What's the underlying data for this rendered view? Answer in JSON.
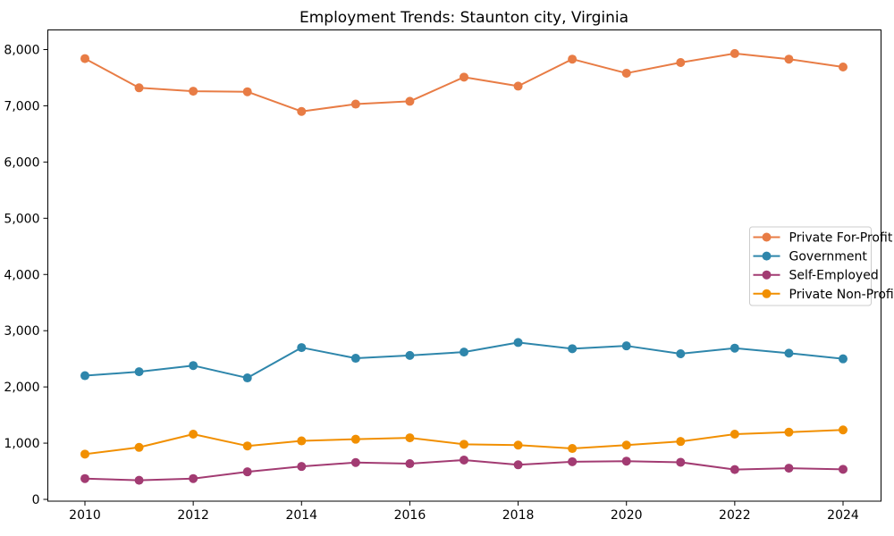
{
  "chart_data": {
    "type": "line",
    "title": "Employment Trends: Staunton city, Virginia",
    "x": [
      2010,
      2011,
      2012,
      2013,
      2014,
      2015,
      2016,
      2017,
      2018,
      2019,
      2020,
      2021,
      2022,
      2023,
      2024
    ],
    "x_ticks": [
      2010,
      2012,
      2014,
      2016,
      2018,
      2020,
      2022,
      2024
    ],
    "x_tick_labels": [
      "2010",
      "2012",
      "2014",
      "2016",
      "2018",
      "2020",
      "2022",
      "2024"
    ],
    "y_ticks": [
      0,
      1000,
      2000,
      3000,
      4000,
      5000,
      6000,
      7000,
      8000
    ],
    "y_tick_labels": [
      "0",
      "1,000",
      "2,000",
      "3,000",
      "4,000",
      "5,000",
      "6,000",
      "7,000",
      "8,000"
    ],
    "ylim": [
      0,
      8350
    ],
    "xlim": [
      2009.3,
      2024.7
    ],
    "grid": false,
    "legend_position": "center-right",
    "series": [
      {
        "name": "Private For-Profit",
        "color": "#e87c45",
        "values": [
          7840,
          7320,
          7260,
          7250,
          6900,
          7030,
          7080,
          7510,
          7350,
          7830,
          7580,
          7770,
          7930,
          7830,
          7690
        ]
      },
      {
        "name": "Government",
        "color": "#2e86ab",
        "values": [
          2200,
          2270,
          2380,
          2160,
          2700,
          2510,
          2560,
          2620,
          2790,
          2680,
          2730,
          2590,
          2690,
          2600,
          2500
        ]
      },
      {
        "name": "Self-Employed",
        "color": "#a23b72",
        "values": [
          370,
          340,
          370,
          490,
          585,
          655,
          635,
          700,
          615,
          670,
          680,
          660,
          530,
          555,
          535
        ]
      },
      {
        "name": "Private Non-Profit",
        "color": "#f18f01",
        "values": [
          805,
          925,
          1160,
          950,
          1040,
          1070,
          1095,
          980,
          965,
          905,
          965,
          1030,
          1160,
          1195,
          1235
        ]
      }
    ]
  }
}
